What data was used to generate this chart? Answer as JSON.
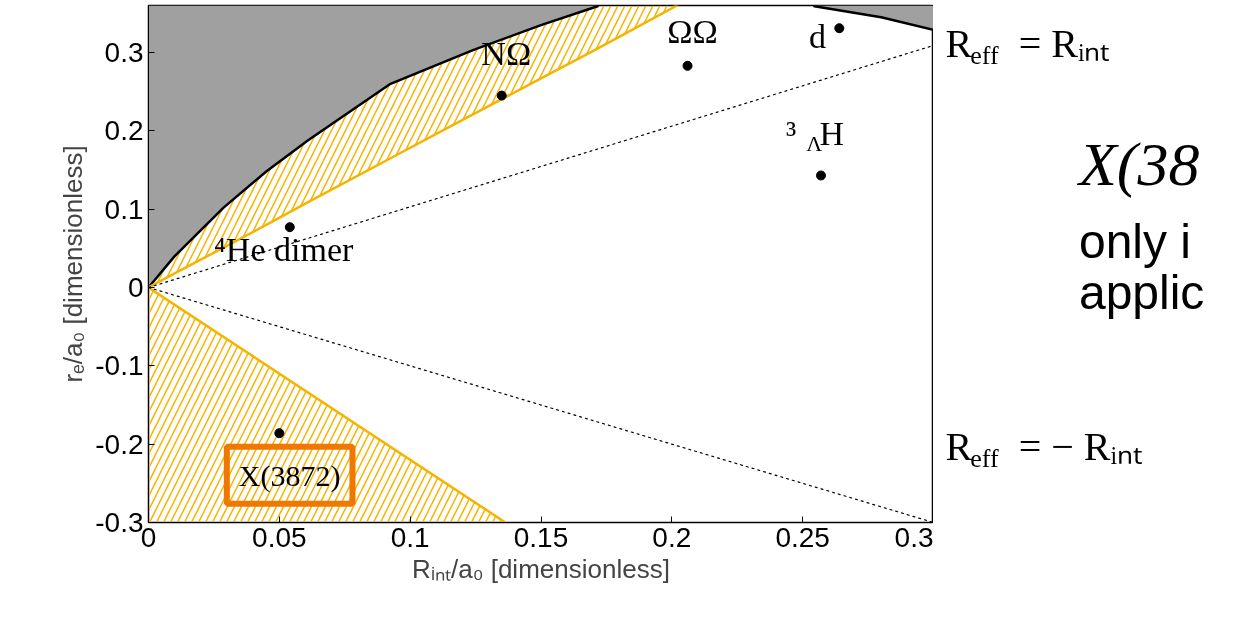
{
  "chart_data": {
    "type": "scatter",
    "xlabel": "Rᵢₙₜ/a₀ [dimensionless]",
    "ylabel": "rₑ/a₀ [dimensionless]",
    "xlim": [
      0,
      0.3
    ],
    "ylim": [
      -0.3,
      0.36
    ],
    "xticks": [
      0,
      0.05,
      0.1,
      0.15,
      0.2,
      0.25,
      0.3
    ],
    "yticks": [
      -0.3,
      -0.2,
      -0.1,
      0,
      0.1,
      0.2,
      0.3
    ],
    "series": [
      {
        "type": "line",
        "color": "#000000",
        "line_style": "solid",
        "x": [
          0,
          0.01,
          0.0287,
          0.045,
          0.061,
          0.0925,
          0.124,
          0.15,
          0.1716
        ],
        "values": [
          0,
          0.04,
          0.102,
          0.148,
          0.188,
          0.26,
          0.303,
          0.335,
          0.359
        ],
        "lower": [
          0,
          0.04,
          0.102,
          0.148,
          0.188,
          0.26,
          0.303,
          0.335,
          0.359
        ],
        "upper": [
          0.36,
          0.36,
          0.36,
          0.36,
          0.36,
          0.36,
          0.36,
          0.36,
          0.36
        ]
      },
      {
        "type": "line",
        "color": "#000000",
        "line_style": "solid",
        "x": [
          0.2545,
          0.28,
          0.3
        ],
        "values": [
          0.359,
          0.345,
          0.329
        ],
        "lower": [
          0.359,
          0.345,
          0.329
        ],
        "upper": [
          0.36,
          0.36,
          0.36
        ]
      },
      {
        "type": "line",
        "color": "#f5b400",
        "line_style": "solid",
        "x": [
          0,
          0.01,
          0.0287,
          0.045,
          0.061,
          0.0925,
          0.124,
          0.15,
          0.1716,
          0.202
        ],
        "values": [
          0,
          0.018,
          0.051,
          0.08,
          0.109,
          0.165,
          0.221,
          0.267,
          0.305,
          0.36
        ],
        "lower": [
          0,
          0.018,
          0.051,
          0.08,
          0.109,
          0.165,
          0.221,
          0.267,
          0.305,
          0.36
        ],
        "upper": [
          0,
          0.04,
          0.102,
          0.148,
          0.188,
          0.26,
          0.303,
          0.335,
          0.359,
          0.36
        ]
      },
      {
        "type": "line",
        "color": "#f5b400",
        "line_style": "solid",
        "x": [
          0,
          0.1364
        ],
        "values": [
          0,
          -0.3
        ],
        "lower": [
          -0.3,
          -0.3
        ],
        "upper": [
          0,
          -0.3
        ]
      },
      {
        "type": "line",
        "name": "R$_{eff}$ = Rᵢₙₜ",
        "color": "#000000",
        "line_style": "dotted",
        "x": [
          0,
          0.3
        ],
        "values": [
          0,
          0.309
        ]
      },
      {
        "type": "line",
        "name": "R$_{eff}$ = − Rᵢₙₜ",
        "color": "#000000",
        "line_style": "dotted",
        "x": [
          0,
          0.3
        ],
        "values": [
          0,
          -0.3
        ]
      },
      {
        "name": "NΩ",
        "marker": "circle",
        "color": "#000000",
        "x": [
          0.135
        ],
        "values": [
          0.245
        ]
      },
      {
        "name": "ΩΩ",
        "marker": "circle",
        "color": "#000000",
        "x": [
          0.206
        ],
        "values": [
          0.283
        ]
      },
      {
        "name": "d",
        "marker": "circle",
        "color": "#000000",
        "x": [
          0.264
        ],
        "values": [
          0.331
        ]
      },
      {
        "name": "³$_{Λ}$H",
        "marker": "circle",
        "color": "#000000",
        "x": [
          0.257
        ],
        "values": [
          0.143
        ]
      },
      {
        "name": "⁴He dimer",
        "marker": "circle",
        "color": "#000000",
        "x": [
          0.054
        ],
        "values": [
          0.077
        ]
      },
      {
        "marker": "circle",
        "color": "#000000",
        "x": [
          0.05
        ],
        "values": [
          -0.186
        ]
      }
    ],
    "annotations": [
      {
        "text": "X(3872)",
        "x": 0.05,
        "y": -0.186
      },
      "X(38",
      "only i",
      "applic"
    ]
  }
}
